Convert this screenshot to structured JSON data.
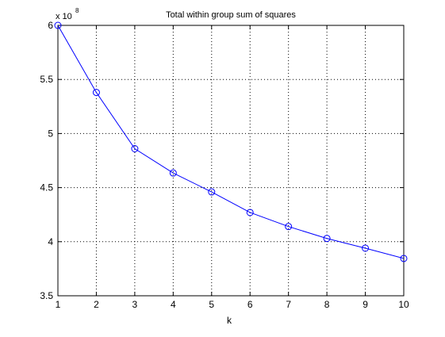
{
  "chart_data": {
    "type": "line",
    "title": "Total within group sum of squares",
    "xlabel": "k",
    "ylabel": "",
    "y_scale_note": {
      "prefix": "x 10",
      "exponent": "8"
    },
    "x": [
      1,
      2,
      3,
      4,
      5,
      6,
      7,
      8,
      9,
      10
    ],
    "series": [
      {
        "values": [
          6.0,
          5.38,
          4.86,
          4.635,
          4.46,
          4.27,
          4.14,
          4.03,
          3.94,
          3.845
        ],
        "color": "#0000ff",
        "marker": "circle"
      }
    ],
    "xlim": [
      1,
      10
    ],
    "ylim": [
      3.5,
      6
    ],
    "x_ticks": [
      "1",
      "2",
      "3",
      "4",
      "5",
      "6",
      "7",
      "8",
      "9",
      "10"
    ],
    "y_ticks": [
      "3.5",
      "4",
      "4.5",
      "5",
      "5.5",
      "6"
    ],
    "grid": true
  }
}
